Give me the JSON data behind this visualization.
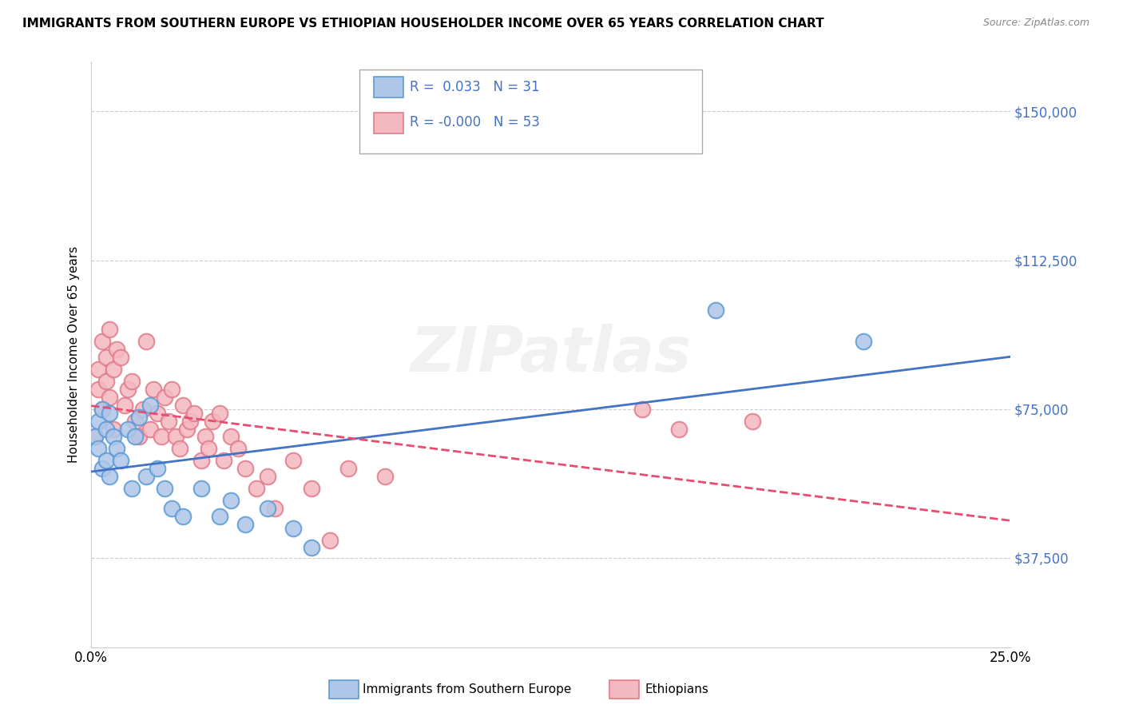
{
  "title": "IMMIGRANTS FROM SOUTHERN EUROPE VS ETHIOPIAN HOUSEHOLDER INCOME OVER 65 YEARS CORRELATION CHART",
  "source": "Source: ZipAtlas.com",
  "ylabel": "Householder Income Over 65 years",
  "xlim": [
    0.0,
    0.25
  ],
  "ylim": [
    15000,
    162500
  ],
  "yticks": [
    37500,
    75000,
    112500,
    150000
  ],
  "ytick_labels": [
    "$37,500",
    "$75,000",
    "$112,500",
    "$150,000"
  ],
  "xticks": [
    0.0,
    0.05,
    0.1,
    0.15,
    0.2,
    0.25
  ],
  "xtick_labels": [
    "0.0%",
    "",
    "",
    "",
    "",
    "25.0%"
  ],
  "watermark": "ZIPatlas",
  "series1_color": "#aec6e8",
  "series1_edge": "#5b9bd5",
  "series2_color": "#f4b8c1",
  "series2_edge": "#e07b8a",
  "trendline1_color": "#4472c4",
  "trendline2_color": "#e84c6e",
  "legend_R1": "R =  0.033",
  "legend_N1": "N = 31",
  "legend_R2": "R = -0.000",
  "legend_N2": "N = 53",
  "legend_label1": "Immigrants from Southern Europe",
  "legend_label2": "Ethiopians",
  "series1_x": [
    0.001,
    0.002,
    0.002,
    0.003,
    0.003,
    0.004,
    0.004,
    0.005,
    0.005,
    0.006,
    0.007,
    0.008,
    0.01,
    0.011,
    0.012,
    0.013,
    0.015,
    0.016,
    0.018,
    0.02,
    0.022,
    0.025,
    0.03,
    0.035,
    0.038,
    0.042,
    0.048,
    0.055,
    0.06,
    0.17,
    0.21
  ],
  "series1_y": [
    68000,
    65000,
    72000,
    60000,
    75000,
    62000,
    70000,
    58000,
    74000,
    68000,
    65000,
    62000,
    70000,
    55000,
    68000,
    73000,
    58000,
    76000,
    60000,
    55000,
    50000,
    48000,
    55000,
    48000,
    52000,
    46000,
    50000,
    45000,
    40000,
    100000,
    92000
  ],
  "series2_x": [
    0.001,
    0.002,
    0.002,
    0.003,
    0.003,
    0.004,
    0.004,
    0.005,
    0.005,
    0.006,
    0.006,
    0.007,
    0.008,
    0.009,
    0.01,
    0.011,
    0.012,
    0.013,
    0.014,
    0.015,
    0.016,
    0.017,
    0.018,
    0.019,
    0.02,
    0.021,
    0.022,
    0.023,
    0.024,
    0.025,
    0.026,
    0.027,
    0.028,
    0.03,
    0.031,
    0.032,
    0.033,
    0.035,
    0.036,
    0.038,
    0.04,
    0.042,
    0.045,
    0.048,
    0.05,
    0.055,
    0.06,
    0.065,
    0.07,
    0.08,
    0.15,
    0.16,
    0.18
  ],
  "series2_y": [
    68000,
    80000,
    85000,
    92000,
    75000,
    88000,
    82000,
    95000,
    78000,
    85000,
    70000,
    90000,
    88000,
    76000,
    80000,
    82000,
    72000,
    68000,
    75000,
    92000,
    70000,
    80000,
    74000,
    68000,
    78000,
    72000,
    80000,
    68000,
    65000,
    76000,
    70000,
    72000,
    74000,
    62000,
    68000,
    65000,
    72000,
    74000,
    62000,
    68000,
    65000,
    60000,
    55000,
    58000,
    50000,
    62000,
    55000,
    42000,
    60000,
    58000,
    75000,
    70000,
    72000
  ]
}
